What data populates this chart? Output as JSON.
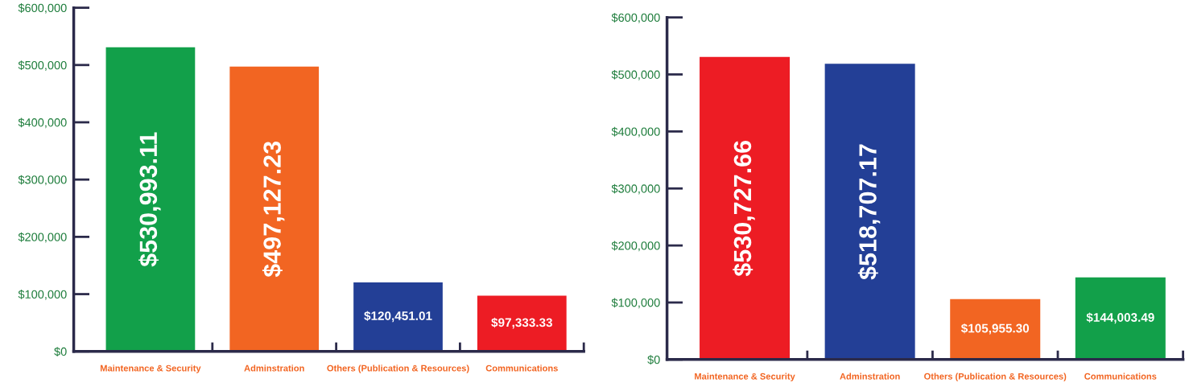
{
  "chart_data": [
    {
      "type": "bar",
      "categories": [
        "Maintenance & Security",
        "Adminstration",
        "Others (Publication & Resources)",
        "Communications"
      ],
      "values": [
        530993.11,
        497127.23,
        120451.01,
        97333.33
      ],
      "colors": [
        "#12a04a",
        "#f26522",
        "#233f96",
        "#ed1c24"
      ],
      "value_labels": [
        "$530,993.11",
        "$497,127.23",
        "$120,451.01",
        "$97,333.33"
      ],
      "ylim": [
        0,
        600000
      ],
      "yticks": [
        {
          "value": 0,
          "label": "$0"
        },
        {
          "value": 100000,
          "label": "$100,000"
        },
        {
          "value": 200000,
          "label": "$200,000"
        },
        {
          "value": 300000,
          "label": "$300,000"
        },
        {
          "value": 400000,
          "label": "$400,000"
        },
        {
          "value": 500000,
          "label": "$500,000"
        },
        {
          "value": 600000,
          "label": "$600,000"
        }
      ],
      "grid": false,
      "legend": false
    },
    {
      "type": "bar",
      "categories": [
        "Maintenance & Security",
        "Adminstration",
        "Others (Publication & Resources)",
        "Communications"
      ],
      "values": [
        530727.66,
        518707.17,
        105955.3,
        144003.49
      ],
      "colors": [
        "#ed1c24",
        "#233f96",
        "#f26522",
        "#12a04a"
      ],
      "value_labels": [
        "$530,727.66",
        "$518,707.17",
        "$105,955.30",
        "$144,003.49"
      ],
      "ylim": [
        0,
        600000
      ],
      "yticks": [
        {
          "value": 0,
          "label": "$0"
        },
        {
          "value": 100000,
          "label": "$100,000"
        },
        {
          "value": 200000,
          "label": "$200,000"
        },
        {
          "value": 300000,
          "label": "$300,000"
        },
        {
          "value": 400000,
          "label": "$400,000"
        },
        {
          "value": 500000,
          "label": "$500,000"
        },
        {
          "value": 600000,
          "label": "$600,000"
        }
      ],
      "grid": false,
      "legend": false
    }
  ]
}
